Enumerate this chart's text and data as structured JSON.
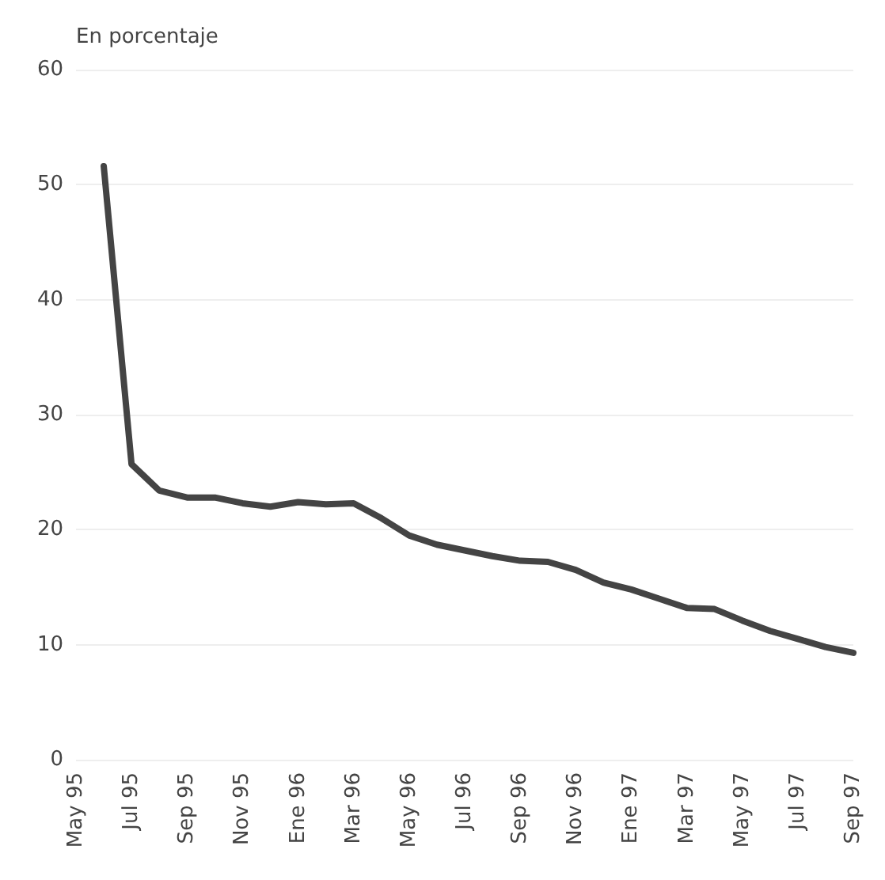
{
  "chart_data": {
    "type": "line",
    "ylabel": "En porcentaje",
    "categories": [
      "May 95",
      null,
      "Jul 95",
      null,
      "Sep 95",
      null,
      "Nov 95",
      null,
      "Ene 96",
      null,
      "Mar 96",
      null,
      "May 96",
      null,
      "Jul 96",
      null,
      "Sep 96",
      null,
      "Nov 96",
      null,
      "Ene 97",
      null,
      "Mar 97",
      null,
      "May 97",
      null,
      "Jul 97",
      null,
      "Sep 97"
    ],
    "series": [
      {
        "color": "#444444",
        "values": [
          null,
          51.6,
          25.7,
          23.4,
          22.8,
          22.8,
          22.3,
          22.0,
          22.4,
          22.2,
          22.3,
          21.0,
          19.5,
          18.7,
          18.2,
          17.7,
          17.3,
          17.2,
          16.5,
          15.4,
          14.8,
          14.0,
          13.2,
          13.1,
          12.1,
          11.2,
          10.5,
          9.8,
          9.3
        ]
      }
    ],
    "ylim": [
      0,
      60
    ],
    "yticks": [
      0,
      10,
      20,
      30,
      40,
      50,
      60
    ],
    "grid": "y",
    "marker": "none",
    "line_style": "solid"
  }
}
